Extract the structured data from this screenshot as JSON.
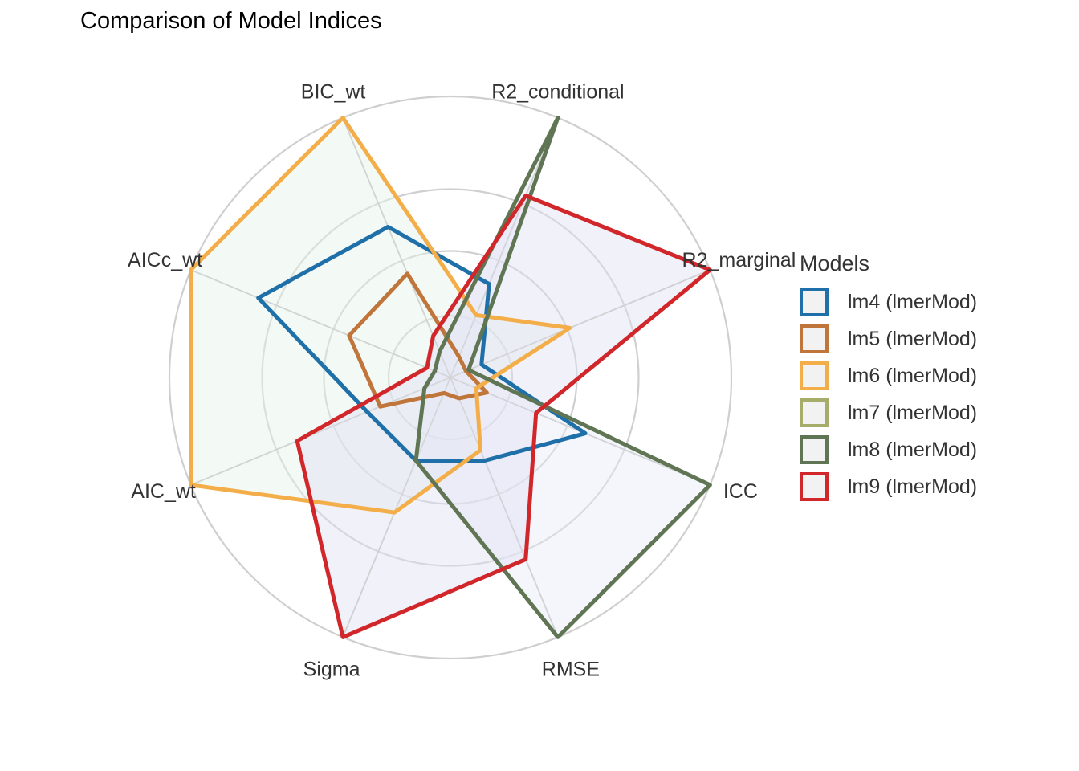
{
  "title": "Comparison of Model Indices",
  "legend": {
    "title": "Models"
  },
  "chart_data": {
    "type": "radar",
    "title": "Comparison of Model Indices",
    "axes": [
      "R2_conditional",
      "R2_marginal",
      "ICC",
      "RMSE",
      "Sigma",
      "AIC_wt",
      "AICc_wt",
      "BIC_wt"
    ],
    "rlim": [
      0,
      1
    ],
    "grid": true,
    "legend_position": "right",
    "series": [
      {
        "name": "lm4 (lmerMod)",
        "color": "#1f6fa8",
        "fill": false,
        "values": [
          0.36,
          0.12,
          0.52,
          0.32,
          0.32,
          0.32,
          0.74,
          0.58
        ]
      },
      {
        "name": "lm5 (lmerMod)",
        "color": "#c0763a",
        "fill": false,
        "values": [
          0.08,
          0.06,
          0.14,
          0.08,
          0.06,
          0.27,
          0.39,
          0.4
        ]
      },
      {
        "name": "lm6 (lmerMod)",
        "color": "#f3ae49",
        "fill": true,
        "fill_color": "#e4f5ec",
        "values": [
          0.24,
          0.46,
          0.1,
          0.28,
          0.52,
          1.0,
          1.0,
          1.0
        ]
      },
      {
        "name": "lm7 (lmerMod)",
        "color": "#a6ac6a",
        "fill": false,
        "values": [
          0.0,
          0.0,
          0.0,
          0.0,
          0.0,
          0.0,
          0.0,
          0.0
        ]
      },
      {
        "name": "lm8 (lmerMod)",
        "color": "#5f7553",
        "fill": true,
        "fill_color": "#e6ecf9",
        "values": [
          1.0,
          0.07,
          1.0,
          1.0,
          0.32,
          0.1,
          0.06,
          0.1
        ]
      },
      {
        "name": "lm9 (lmerMod)",
        "color": "#d1262a",
        "fill": true,
        "fill_color": "#dfdff2",
        "values": [
          0.7,
          1.0,
          0.33,
          0.7,
          1.0,
          0.59,
          0.09,
          0.16
        ]
      }
    ]
  }
}
